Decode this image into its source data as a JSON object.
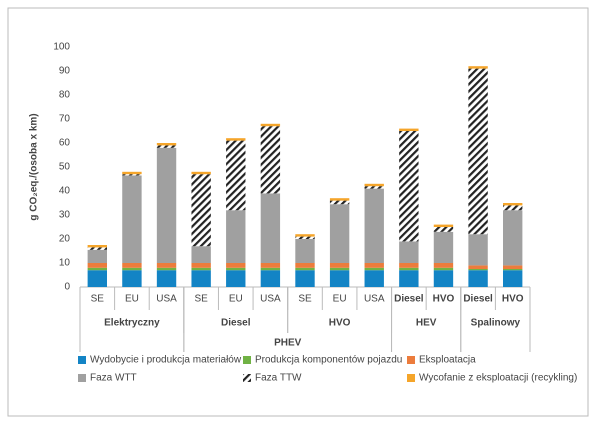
{
  "chart_data": {
    "type": "stacked_bar",
    "y_label": "g CO₂eq./(osoba x km)",
    "groups": [
      {
        "name": "Elektryczny",
        "categories": [
          "SE",
          "EU",
          "USA"
        ]
      },
      {
        "name": "PHEV",
        "subgroups": [
          {
            "name": "Diesel",
            "categories": [
              "SE",
              "EU",
              "USA"
            ]
          },
          {
            "name": "HVO",
            "categories": [
              "SE",
              "EU",
              "USA"
            ]
          }
        ]
      },
      {
        "name": "HEV",
        "categories": [
          "Diesel",
          "HVO"
        ]
      },
      {
        "name": "Spalinowy",
        "categories": [
          "Diesel",
          "HVO"
        ]
      }
    ],
    "series": [
      {
        "name": "Wydobycie i produkcja materiałów",
        "color": "#1384c5",
        "values": [
          7,
          7,
          7,
          7,
          7,
          7,
          7,
          7,
          7,
          7,
          7,
          7,
          7
        ]
      },
      {
        "name": "Produkcja komponentów pojazdu",
        "color": "#70b244",
        "values": [
          1,
          1,
          1,
          1,
          1,
          1,
          1,
          1,
          1,
          1,
          1,
          0.5,
          0.5
        ]
      },
      {
        "name": "Eksploatacja",
        "color": "#ec7c3c",
        "values": [
          2,
          2,
          2,
          2,
          2,
          2,
          2,
          2,
          2,
          2,
          2,
          1.5,
          1.5
        ]
      },
      {
        "name": "Faza WTT",
        "color": "#a0a0a0",
        "values": [
          5.5,
          36.5,
          48,
          7,
          22,
          29,
          10,
          24.5,
          31,
          9,
          13,
          13,
          23
        ]
      },
      {
        "name": "Faza TTW",
        "color": "#222222",
        "hatch": true,
        "values": [
          1,
          0.5,
          1,
          30,
          29,
          28,
          1,
          1.5,
          1,
          46,
          2,
          69,
          2
        ]
      },
      {
        "name": "Wycofanie z eksploatacji (recykling)",
        "color": "#f5a52a",
        "values": [
          1,
          1,
          1,
          1,
          1,
          1,
          1,
          1,
          1,
          1,
          1,
          1,
          1
        ]
      }
    ],
    "ylim": [
      0,
      100
    ],
    "yticks": [
      0,
      10,
      20,
      30,
      40,
      50,
      60,
      70,
      80,
      90,
      100
    ],
    "grid": false
  }
}
